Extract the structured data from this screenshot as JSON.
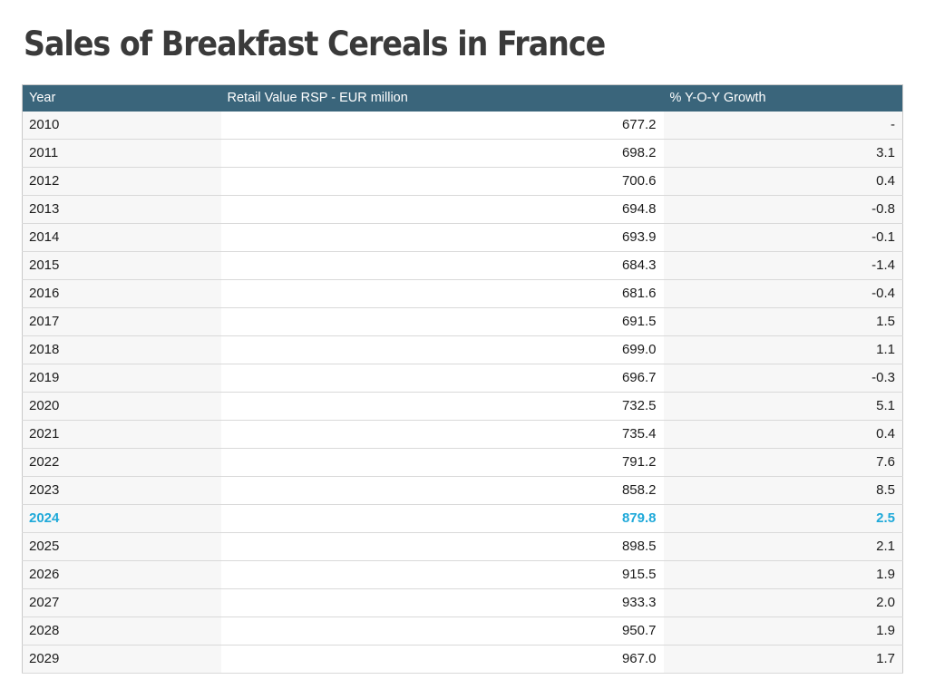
{
  "page": {
    "title": "Sales of Breakfast Cereals in France"
  },
  "table": {
    "columns": [
      "Year",
      "Retail Value RSP - EUR million",
      "% Y-O-Y Growth"
    ],
    "rows": [
      {
        "year": "2010",
        "value": "677.2",
        "growth": "-",
        "highlight": false
      },
      {
        "year": "2011",
        "value": "698.2",
        "growth": "3.1",
        "highlight": false
      },
      {
        "year": "2012",
        "value": "700.6",
        "growth": "0.4",
        "highlight": false
      },
      {
        "year": "2013",
        "value": "694.8",
        "growth": "-0.8",
        "highlight": false
      },
      {
        "year": "2014",
        "value": "693.9",
        "growth": "-0.1",
        "highlight": false
      },
      {
        "year": "2015",
        "value": "684.3",
        "growth": "-1.4",
        "highlight": false
      },
      {
        "year": "2016",
        "value": "681.6",
        "growth": "-0.4",
        "highlight": false
      },
      {
        "year": "2017",
        "value": "691.5",
        "growth": "1.5",
        "highlight": false
      },
      {
        "year": "2018",
        "value": "699.0",
        "growth": "1.1",
        "highlight": false
      },
      {
        "year": "2019",
        "value": "696.7",
        "growth": "-0.3",
        "highlight": false
      },
      {
        "year": "2020",
        "value": "732.5",
        "growth": "5.1",
        "highlight": false
      },
      {
        "year": "2021",
        "value": "735.4",
        "growth": "0.4",
        "highlight": false
      },
      {
        "year": "2022",
        "value": "791.2",
        "growth": "7.6",
        "highlight": false
      },
      {
        "year": "2023",
        "value": "858.2",
        "growth": "8.5",
        "highlight": false
      },
      {
        "year": "2024",
        "value": "879.8",
        "growth": "2.5",
        "highlight": true
      },
      {
        "year": "2025",
        "value": "898.5",
        "growth": "2.1",
        "highlight": false
      },
      {
        "year": "2026",
        "value": "915.5",
        "growth": "1.9",
        "highlight": false
      },
      {
        "year": "2027",
        "value": "933.3",
        "growth": "2.0",
        "highlight": false
      },
      {
        "year": "2028",
        "value": "950.7",
        "growth": "1.9",
        "highlight": false
      },
      {
        "year": "2029",
        "value": "967.0",
        "growth": "1.7",
        "highlight": false
      }
    ],
    "highlighted_year": "2024"
  },
  "colors": {
    "header_bg": "#3a657b",
    "header_text": "#ffffff",
    "title_text": "#3a3a3a",
    "cell_text": "#1c1c1c",
    "stripe_bg": "#f7f7f7",
    "row_border": "#d9d9d9",
    "table_border": "#c9c9c9",
    "highlight_text": "#1fa9d9"
  },
  "chart_data": {
    "type": "table",
    "title": "Sales of Breakfast Cereals in France",
    "columns": [
      "Year",
      "Retail Value RSP - EUR million",
      "% Y-O-Y Growth"
    ],
    "x": [
      2010,
      2011,
      2012,
      2013,
      2014,
      2015,
      2016,
      2017,
      2018,
      2019,
      2020,
      2021,
      2022,
      2023,
      2024,
      2025,
      2026,
      2027,
      2028,
      2029
    ],
    "series": [
      {
        "name": "Retail Value RSP - EUR million",
        "values": [
          677.2,
          698.2,
          700.6,
          694.8,
          693.9,
          684.3,
          681.6,
          691.5,
          699.0,
          696.7,
          732.5,
          735.4,
          791.2,
          858.2,
          879.8,
          898.5,
          915.5,
          933.3,
          950.7,
          967.0
        ]
      },
      {
        "name": "% Y-O-Y Growth",
        "values": [
          null,
          3.1,
          0.4,
          -0.8,
          -0.1,
          -1.4,
          -0.4,
          1.5,
          1.1,
          -0.3,
          5.1,
          0.4,
          7.6,
          8.5,
          2.5,
          2.1,
          1.9,
          2.0,
          1.9,
          1.7
        ]
      }
    ],
    "highlighted_year": 2024,
    "layout_hints": {
      "year_growth_columns_shaded": true,
      "value_column_white": true,
      "highlight_color": "#1fa9d9"
    }
  }
}
